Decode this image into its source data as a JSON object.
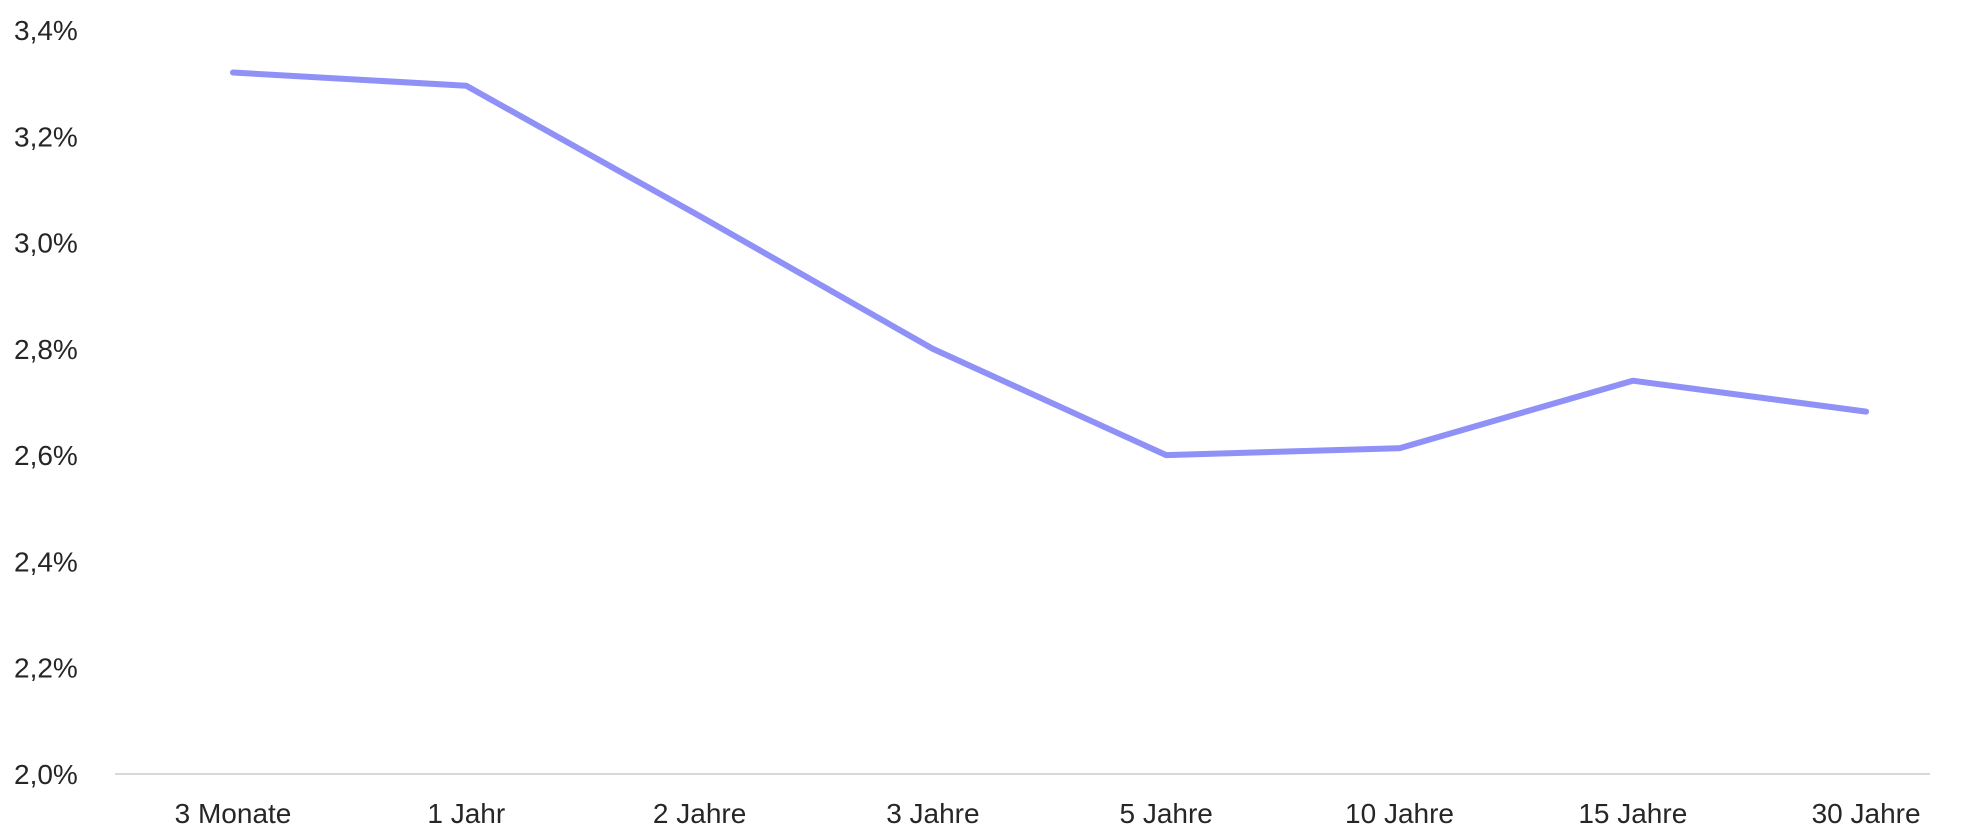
{
  "chart_data": {
    "type": "line",
    "title": "",
    "xlabel": "",
    "ylabel": "",
    "categories": [
      "3 Monate",
      "1 Jahr",
      "2 Jahre",
      "3 Jahre",
      "5 Jahre",
      "10 Jahre",
      "15 Jahre",
      "30 Jahre"
    ],
    "series": [
      {
        "values": [
          3.32,
          3.295,
          3.05,
          2.8,
          2.6,
          2.613,
          2.74,
          2.682
        ],
        "color": "#8f91f7"
      }
    ],
    "ylim": [
      2.0,
      3.4
    ],
    "yticks": [
      "2,0%",
      "2,2%",
      "2,4%",
      "2,6%",
      "2,8%",
      "3,0%",
      "3,2%",
      "3,4%"
    ],
    "grid": false,
    "legend": "none"
  }
}
